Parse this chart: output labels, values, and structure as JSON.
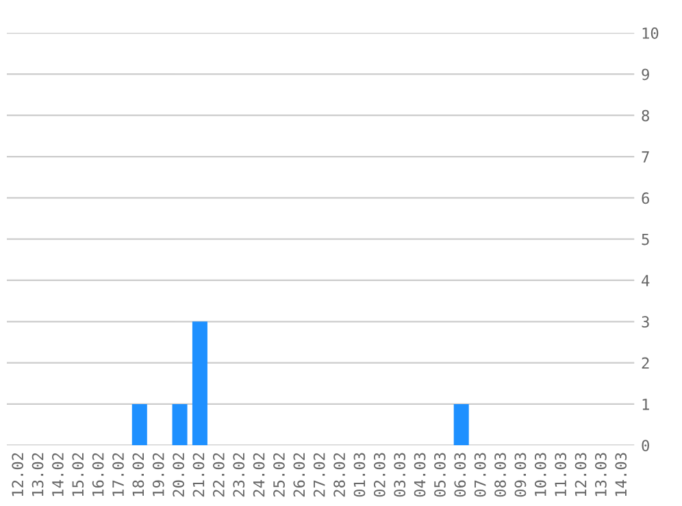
{
  "chart_data": {
    "type": "bar",
    "categories": [
      "12.02",
      "13.02",
      "14.02",
      "15.02",
      "16.02",
      "17.02",
      "18.02",
      "19.02",
      "20.02",
      "21.02",
      "22.02",
      "23.02",
      "24.02",
      "25.02",
      "26.02",
      "27.02",
      "28.02",
      "01.03",
      "02.03",
      "03.03",
      "04.03",
      "05.03",
      "06.03",
      "07.03",
      "08.03",
      "09.03",
      "10.03",
      "11.03",
      "12.03",
      "13.03",
      "14.03"
    ],
    "values": [
      0,
      0,
      0,
      0,
      0,
      0,
      1,
      0,
      1,
      3,
      0,
      0,
      0,
      0,
      0,
      0,
      0,
      0,
      0,
      0,
      0,
      0,
      1,
      0,
      0,
      0,
      0,
      0,
      0,
      0,
      0
    ],
    "color": "#1e90ff",
    "ylim": [
      0,
      10
    ],
    "yticks": [
      0,
      1,
      2,
      3,
      4,
      5,
      6,
      7,
      8,
      9,
      10
    ],
    "grid": "y",
    "legend": false
  }
}
